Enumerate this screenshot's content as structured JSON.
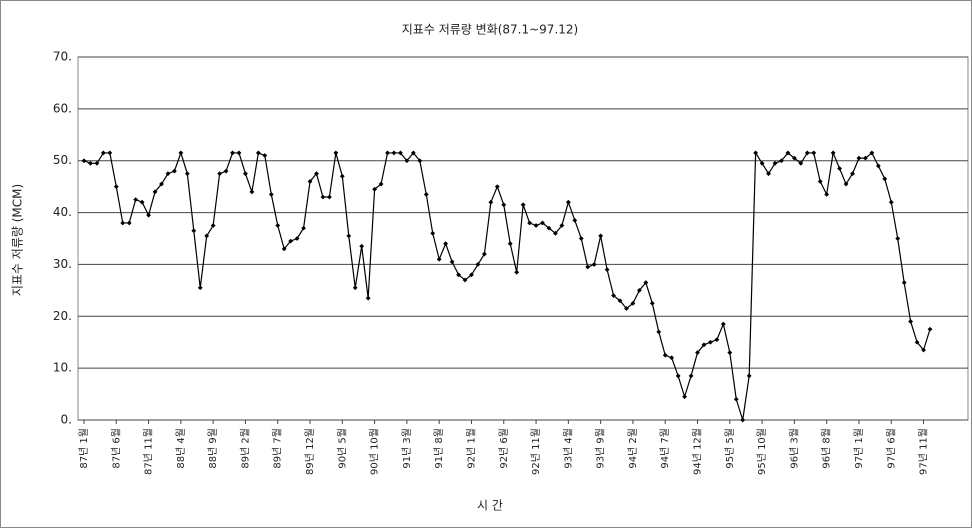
{
  "chart_data": {
    "type": "line",
    "title": "지표수 저류량 변화(87.1~97.12)",
    "y_label": "지표수 저류량 (MCM)",
    "x_label": "시 간",
    "categories": [
      "87년 1월",
      null,
      null,
      null,
      null,
      "87년 6월",
      null,
      null,
      null,
      null,
      "87년 11월",
      null,
      null,
      null,
      null,
      "88년 4월",
      null,
      null,
      null,
      null,
      "88년 9월",
      null,
      null,
      null,
      null,
      "89년 2월",
      null,
      null,
      null,
      null,
      "89년 7월",
      null,
      null,
      null,
      null,
      "89년 12월",
      null,
      null,
      null,
      null,
      "90년 5월",
      null,
      null,
      null,
      null,
      "90년 10월",
      null,
      null,
      null,
      null,
      "91년 3월",
      null,
      null,
      null,
      null,
      "91년 8월",
      null,
      null,
      null,
      null,
      "92년 1월",
      null,
      null,
      null,
      null,
      "92년 6월",
      null,
      null,
      null,
      null,
      "92년 11월",
      null,
      null,
      null,
      null,
      "93년 4월",
      null,
      null,
      null,
      null,
      "93년 9월",
      null,
      null,
      null,
      null,
      "94년 2월",
      null,
      null,
      null,
      null,
      "94년 7월",
      null,
      null,
      null,
      null,
      "94년 12월",
      null,
      null,
      null,
      null,
      "95년 5월",
      null,
      null,
      null,
      null,
      "95년 10월",
      null,
      null,
      null,
      null,
      "96년 3월",
      null,
      null,
      null,
      null,
      "96년 8월",
      null,
      null,
      null,
      null,
      "97년 1월",
      null,
      null,
      null,
      null,
      "97년 6월",
      null,
      null,
      null,
      null,
      "97년 11월",
      null
    ],
    "values": [
      50,
      49.5,
      49.5,
      51.5,
      51.5,
      45,
      38,
      38,
      42.5,
      42,
      39.5,
      44,
      45.5,
      47.5,
      48,
      51.5,
      47.5,
      36.5,
      25.5,
      35.5,
      37.5,
      47.5,
      48,
      51.5,
      51.5,
      47.5,
      44,
      51.5,
      51,
      43.5,
      37.5,
      33,
      34.5,
      35,
      37,
      46,
      47.5,
      43,
      43,
      51.5,
      47,
      35.5,
      25.5,
      33.5,
      23.5,
      44.5,
      45.5,
      51.5,
      51.5,
      51.5,
      50,
      51.5,
      50,
      43.5,
      36,
      31,
      34,
      30.5,
      28,
      27,
      28,
      30,
      32,
      42,
      45,
      41.5,
      34,
      28.5,
      41.5,
      38,
      37.5,
      38,
      37,
      36,
      37.5,
      42,
      38.5,
      35,
      29.5,
      30,
      35.5,
      29,
      24,
      23,
      21.5,
      22.5,
      25,
      26.5,
      22.5,
      17,
      12.5,
      12,
      8.5,
      4.5,
      8.5,
      13,
      14.5,
      15,
      15.5,
      18.5,
      13,
      4,
      0,
      8.5,
      51.5,
      49.5,
      47.5,
      49.5,
      50,
      51.5,
      50.5,
      49.5,
      51.5,
      51.5,
      46,
      43.5,
      51.5,
      48.5,
      45.5,
      47.5,
      50.5,
      50.5,
      51.5,
      49,
      46.5,
      42,
      35,
      26.5,
      19,
      15,
      13.5,
      17.5
    ],
    "color": "#000000",
    "ylim": [
      0,
      70
    ],
    "yticks": [
      {
        "value": 0,
        "label": "0."
      },
      {
        "value": 10,
        "label": "10."
      },
      {
        "value": 20,
        "label": "20."
      },
      {
        "value": 30,
        "label": "30."
      },
      {
        "value": 40,
        "label": "40."
      },
      {
        "value": 50,
        "label": "50."
      },
      {
        "value": 60,
        "label": "60."
      },
      {
        "value": 70,
        "label": "70."
      }
    ],
    "grid": true
  }
}
